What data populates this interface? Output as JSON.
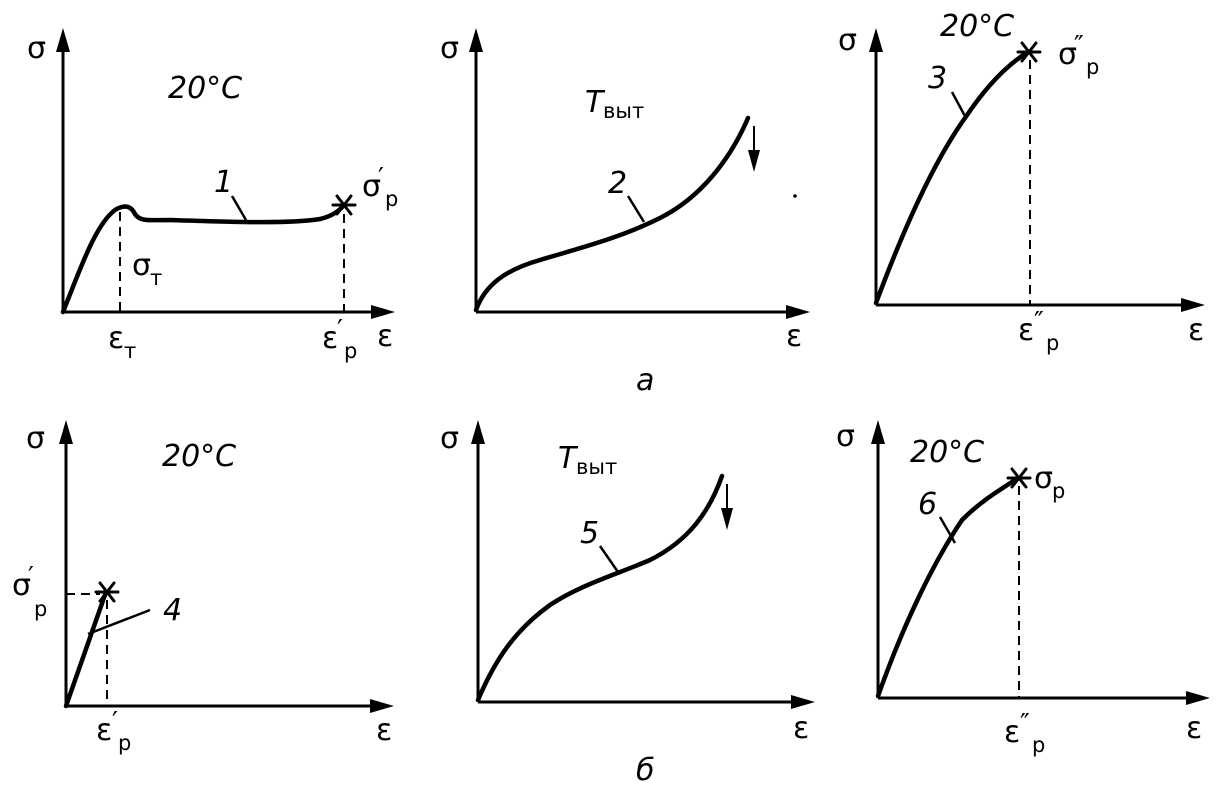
{
  "symbols": {
    "sigma": "σ",
    "epsilon": "ε",
    "prime": "′",
    "dprime": "″",
    "sub_p": "р",
    "sub_t": "т",
    "sub_vyt": "выт",
    "temp": "20°C",
    "T": "T"
  },
  "group_labels": {
    "a": "а",
    "b": "б"
  },
  "curves": {
    "c1": "1",
    "c2": "2",
    "c3": "3",
    "c4": "4",
    "c5": "5",
    "c6": "6"
  }
}
